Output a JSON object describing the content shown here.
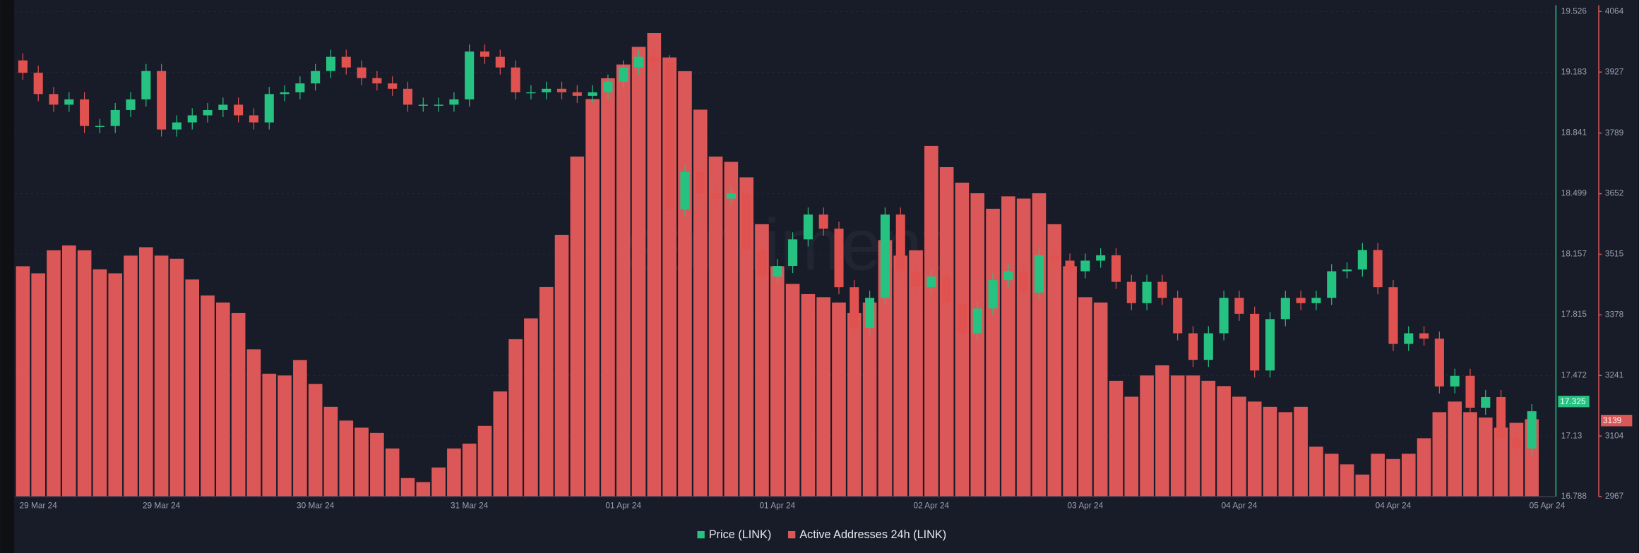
{
  "chart_data": {
    "type": "combo",
    "watermark": "santiment",
    "grid": true,
    "categories": [
      null,
      "29 Mar 24",
      null,
      null,
      null,
      null,
      null,
      null,
      null,
      "29 Mar 24",
      null,
      null,
      null,
      null,
      null,
      null,
      null,
      null,
      null,
      "30 Mar 24",
      null,
      null,
      null,
      null,
      null,
      null,
      null,
      null,
      null,
      "31 Mar 24",
      null,
      null,
      null,
      null,
      null,
      null,
      null,
      null,
      null,
      "01 Apr 24",
      null,
      null,
      null,
      null,
      null,
      null,
      null,
      null,
      null,
      "01 Apr 24",
      null,
      null,
      null,
      null,
      null,
      null,
      null,
      null,
      null,
      "02 Apr 24",
      null,
      null,
      null,
      null,
      null,
      null,
      null,
      null,
      null,
      "03 Apr 24",
      null,
      null,
      null,
      null,
      null,
      null,
      null,
      null,
      null,
      "04 Apr 24",
      null,
      null,
      null,
      null,
      null,
      null,
      null,
      null,
      null,
      "04 Apr 24",
      null,
      null,
      null,
      null,
      null,
      null,
      null,
      null,
      null,
      "05 Apr 24"
    ],
    "ylim": [
      16.788,
      19.526
    ],
    "yticks": [
      16.788,
      17.13,
      17.472,
      17.815,
      18.157,
      18.499,
      18.841,
      19.183,
      19.526
    ],
    "y2lim": [
      2967,
      4064
    ],
    "y2ticks": [
      2967,
      3104,
      3241,
      3378,
      3515,
      3652,
      3789,
      3927,
      4064
    ],
    "series": [
      {
        "name": "Price (LINK)",
        "type": "candlestick",
        "axis": "y",
        "color": "#26c281",
        "down_color": "#e0524f",
        "last_value": 17.325,
        "open": [
          19.25,
          19.18,
          19.06,
          19.0,
          19.03,
          18.88,
          18.88,
          18.97,
          19.03,
          19.19,
          18.86,
          18.9,
          18.94,
          18.97,
          19.0,
          18.94,
          18.9,
          19.06,
          19.07,
          19.12,
          19.19,
          19.27,
          19.21,
          19.15,
          19.12,
          19.09,
          19.0,
          19.0,
          19.0,
          19.03,
          19.3,
          19.27,
          19.21,
          19.07,
          19.07,
          19.09,
          19.07,
          19.05,
          19.07,
          19.13,
          19.21,
          19.27,
          19.24,
          18.41,
          18.62,
          18.5,
          18.47,
          18.5,
          18.18,
          18.03,
          18.09,
          18.24,
          18.38,
          18.3,
          17.97,
          17.74,
          17.91,
          18.38,
          18.06,
          17.97,
          18.03,
          17.88,
          17.71,
          17.85,
          18.01,
          18.06,
          17.94,
          18.15,
          18.12,
          18.06,
          18.12,
          18.15,
          18.0,
          17.88,
          18.0,
          17.91,
          17.71,
          17.56,
          17.71,
          17.91,
          17.82,
          17.5,
          17.79,
          17.91,
          17.88,
          17.91,
          18.06,
          18.07,
          18.18,
          17.97,
          17.65,
          17.71,
          17.68,
          17.41,
          17.47,
          17.29,
          17.35,
          17.12,
          17.06,
          null
        ],
        "high": [
          19.29,
          19.22,
          19.1,
          19.07,
          19.07,
          18.92,
          19.01,
          19.07,
          19.23,
          19.23,
          18.94,
          18.98,
          19.01,
          19.04,
          19.04,
          18.98,
          19.1,
          19.11,
          19.16,
          19.23,
          19.31,
          19.31,
          19.25,
          19.19,
          19.16,
          19.13,
          19.04,
          19.04,
          19.07,
          19.34,
          19.34,
          19.31,
          19.25,
          19.11,
          19.13,
          19.13,
          19.11,
          19.11,
          19.17,
          19.25,
          19.31,
          19.31,
          19.28,
          18.66,
          18.66,
          18.54,
          18.54,
          18.54,
          18.22,
          18.13,
          18.28,
          18.42,
          18.42,
          18.34,
          18.01,
          17.95,
          18.42,
          18.42,
          18.1,
          18.07,
          18.07,
          17.92,
          17.89,
          18.05,
          18.1,
          18.1,
          18.19,
          18.19,
          18.16,
          18.16,
          18.19,
          18.19,
          18.04,
          18.04,
          18.04,
          17.95,
          17.75,
          17.75,
          17.95,
          17.95,
          17.86,
          17.83,
          17.95,
          17.95,
          17.95,
          18.1,
          18.11,
          18.22,
          18.22,
          18.01,
          17.75,
          17.75,
          17.72,
          17.51,
          17.51,
          17.39,
          17.39,
          17.16,
          17.31,
          null
        ],
        "low": [
          19.14,
          19.02,
          18.96,
          18.96,
          18.84,
          18.84,
          18.84,
          18.93,
          18.99,
          18.82,
          18.82,
          18.86,
          18.9,
          18.93,
          18.9,
          18.86,
          18.86,
          19.02,
          19.03,
          19.08,
          19.15,
          19.17,
          19.11,
          19.08,
          19.05,
          18.96,
          18.96,
          18.96,
          18.96,
          18.99,
          19.23,
          19.17,
          19.03,
          19.03,
          19.03,
          19.03,
          19.01,
          19.01,
          19.03,
          19.09,
          19.17,
          19.2,
          18.37,
          18.37,
          18.46,
          18.43,
          18.43,
          18.14,
          17.99,
          17.99,
          18.05,
          18.2,
          18.26,
          17.93,
          17.7,
          17.7,
          17.87,
          18.02,
          17.93,
          17.93,
          17.84,
          17.67,
          17.67,
          17.81,
          17.97,
          17.9,
          17.9,
          18.08,
          18.02,
          18.02,
          18.08,
          17.96,
          17.84,
          17.84,
          17.87,
          17.67,
          17.52,
          17.52,
          17.67,
          17.78,
          17.46,
          17.46,
          17.75,
          17.84,
          17.84,
          17.87,
          18.02,
          18.03,
          17.93,
          17.61,
          17.61,
          17.64,
          17.37,
          17.37,
          17.25,
          17.25,
          17.08,
          17.02,
          17.02,
          null
        ],
        "close": [
          19.18,
          19.06,
          19.0,
          19.03,
          18.88,
          18.88,
          18.97,
          19.03,
          19.19,
          18.86,
          18.9,
          18.94,
          18.97,
          19.0,
          18.94,
          18.9,
          19.06,
          19.07,
          19.12,
          19.19,
          19.27,
          19.21,
          19.15,
          19.12,
          19.09,
          19.0,
          19.0,
          19.0,
          19.03,
          19.3,
          19.27,
          19.21,
          19.07,
          19.07,
          19.09,
          19.07,
          19.05,
          19.07,
          19.13,
          19.21,
          19.27,
          19.24,
          18.41,
          18.62,
          18.5,
          18.47,
          18.5,
          18.18,
          18.03,
          18.09,
          18.24,
          18.38,
          18.3,
          17.97,
          17.74,
          17.91,
          18.38,
          18.06,
          17.97,
          18.03,
          17.88,
          17.71,
          17.85,
          18.01,
          18.06,
          17.94,
          18.15,
          18.12,
          18.06,
          18.12,
          18.15,
          18.0,
          17.88,
          18.0,
          17.91,
          17.71,
          17.56,
          17.71,
          17.91,
          17.82,
          17.5,
          17.79,
          17.91,
          17.88,
          17.91,
          18.06,
          18.07,
          18.18,
          17.97,
          17.65,
          17.71,
          17.68,
          17.41,
          17.47,
          17.29,
          17.35,
          17.12,
          17.06,
          17.27,
          null
        ]
      },
      {
        "name": "Active Addresses 24h (LINK)",
        "type": "bar",
        "axis": "y2",
        "color": "#dc5858",
        "last_value": 3139,
        "values": [
          3488,
          3472,
          3524,
          3535,
          3524,
          3481,
          3472,
          3512,
          3531,
          3512,
          3505,
          3458,
          3422,
          3406,
          3382,
          3300,
          3245,
          3241,
          3276,
          3222,
          3170,
          3139,
          3123,
          3111,
          3076,
          3009,
          3000,
          3033,
          3076,
          3087,
          3127,
          3205,
          3323,
          3370,
          3441,
          3559,
          3736,
          3866,
          3913,
          3944,
          3984,
          4015,
          3960,
          3929,
          3842,
          3736,
          3724,
          3689,
          3583,
          3488,
          3448,
          3425,
          3418,
          3406,
          3382,
          3406,
          3547,
          3512,
          3524,
          3760,
          3712,
          3677,
          3653,
          3618,
          3646,
          3641,
          3653,
          3583,
          3488,
          3418,
          3406,
          3229,
          3193,
          3241,
          3264,
          3241,
          3241,
          3229,
          3217,
          3193,
          3182,
          3170,
          3158,
          3170,
          3080,
          3064,
          3040,
          3017,
          3064,
          3052,
          3064,
          3099,
          3158,
          3182,
          3158,
          3146,
          3123,
          3134,
          3142,
          null
        ]
      }
    ]
  }
}
